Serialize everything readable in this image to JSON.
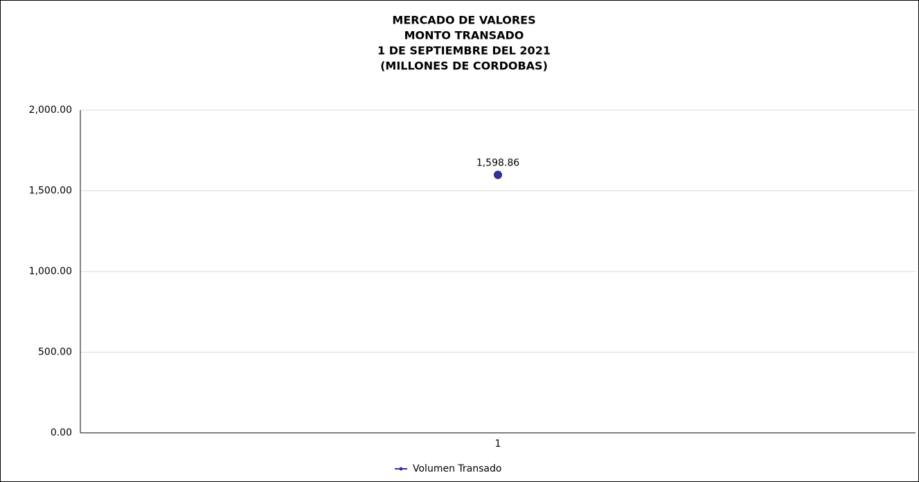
{
  "chart_data": {
    "type": "line",
    "title": [
      "MERCADO DE VALORES",
      "MONTO TRANSADO",
      "1 DE SEPTIEMBRE DEL 2021",
      "(MILLONES DE CORDOBAS)"
    ],
    "categories": [
      "1"
    ],
    "series": [
      {
        "name": "Volumen Transado",
        "color": "#333399",
        "values": [
          1598.86
        ],
        "value_labels": [
          "1,598.86"
        ]
      }
    ],
    "ylim": [
      0,
      2000
    ],
    "yticks": [
      {
        "value": 0,
        "label": "0.00"
      },
      {
        "value": 500,
        "label": "500.00"
      },
      {
        "value": 1000,
        "label": "1,000.00"
      },
      {
        "value": 1500,
        "label": "1,500.00"
      },
      {
        "value": 2000,
        "label": "2,000.00"
      }
    ],
    "grid": true,
    "legend": "bottom"
  }
}
